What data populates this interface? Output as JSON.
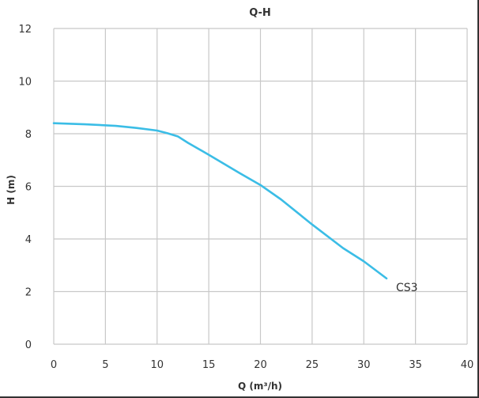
{
  "chart_data": {
    "type": "line",
    "title": "Q-H",
    "xlabel": "Q (m³/h)",
    "ylabel": "H (m)",
    "xlim": [
      0,
      40
    ],
    "ylim": [
      0,
      12
    ],
    "xticks": [
      0,
      5,
      10,
      15,
      20,
      25,
      30,
      35,
      40
    ],
    "yticks": [
      0,
      2,
      4,
      6,
      8,
      10,
      12
    ],
    "grid": true,
    "series": [
      {
        "name": "CS3",
        "color": "#3bbde6",
        "x": [
          0,
          3,
          6,
          8,
          10,
          11,
          12,
          13,
          15,
          18,
          20,
          22,
          25,
          28,
          30,
          32.2
        ],
        "y": [
          8.4,
          8.36,
          8.3,
          8.22,
          8.12,
          8.02,
          7.9,
          7.65,
          7.2,
          6.5,
          6.05,
          5.5,
          4.55,
          3.65,
          3.15,
          2.5
        ]
      }
    ]
  }
}
